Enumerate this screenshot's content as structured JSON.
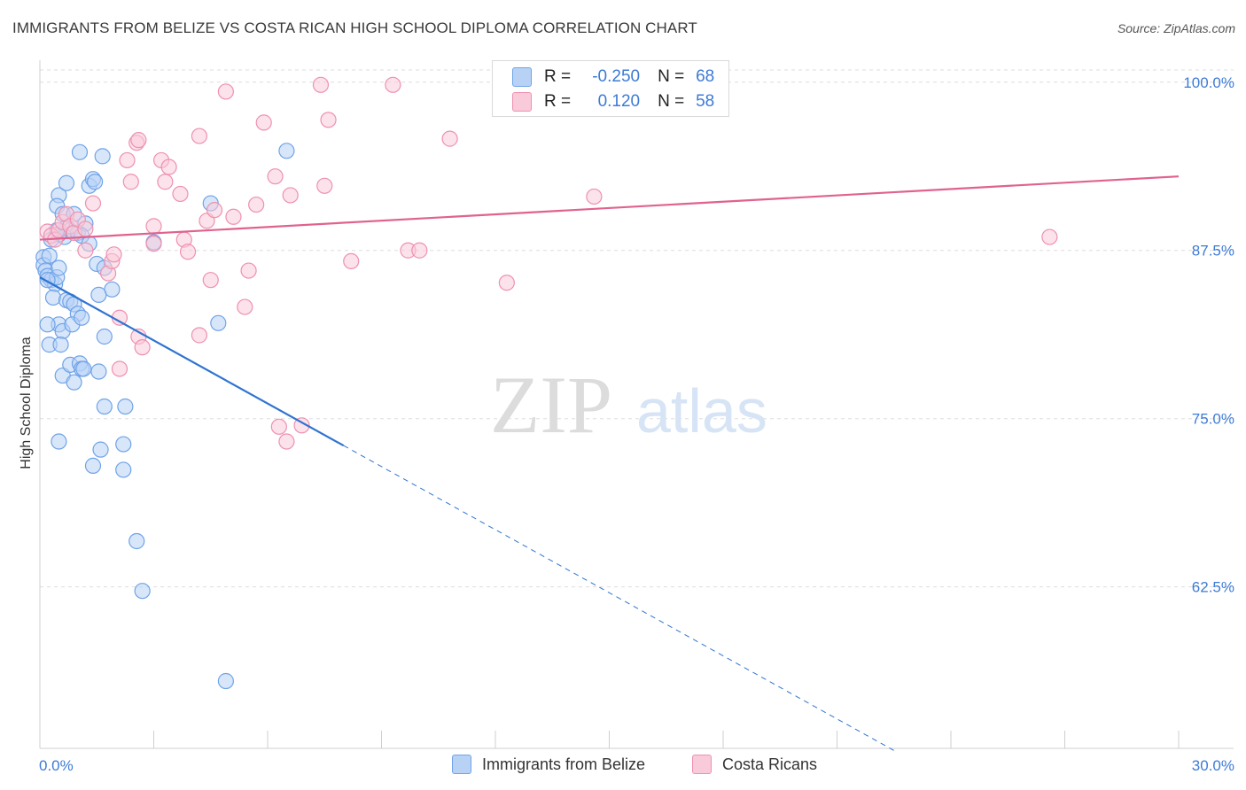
{
  "title": "IMMIGRANTS FROM BELIZE VS COSTA RICAN HIGH SCHOOL DIPLOMA CORRELATION CHART",
  "source": "Source: ZipAtlas.com",
  "watermark": {
    "zip": "ZIP",
    "atlas": "atlas"
  },
  "legend": {
    "r_label": "R =",
    "n_label": "N =",
    "rows": [
      {
        "r": "-0.250",
        "n": "68",
        "color": "#6fa3e8",
        "fill": "#b8d2f5"
      },
      {
        "r": "0.120",
        "n": "58",
        "color": "#ee91b0",
        "fill": "#f9cad9"
      }
    ]
  },
  "chart_data": {
    "type": "scatter",
    "title": "IMMIGRANTS FROM BELIZE VS COSTA RICAN HIGH SCHOOL DIPLOMA CORRELATION CHART",
    "xlabel": "",
    "ylabel": "High School Diploma",
    "xlim": [
      0.0,
      30.0
    ],
    "ylim": [
      50.5,
      101.5
    ],
    "x_tick_labels": [
      "0.0%",
      "30.0%"
    ],
    "y_ticks": [
      62.5,
      75.0,
      87.5,
      100.0
    ],
    "y_tick_labels": [
      "62.5%",
      "75.0%",
      "87.5%",
      "100.0%"
    ],
    "grid": true,
    "legend_position": "top-center",
    "series": [
      {
        "name": "Immigrants from Belize",
        "color": "#6fa3e8",
        "fill": "#b8d2f5",
        "trend": {
          "x0": 0.0,
          "y0": 85.5,
          "x1": 8.0,
          "y1": 73.0,
          "dash_to_x": 22.5
        },
        "points": [
          [
            0.1,
            87.0
          ],
          [
            0.1,
            86.4
          ],
          [
            0.15,
            86.0
          ],
          [
            0.2,
            85.6
          ],
          [
            0.3,
            85.3
          ],
          [
            0.25,
            87.1
          ],
          [
            0.4,
            85.0
          ],
          [
            0.45,
            85.5
          ],
          [
            0.5,
            86.2
          ],
          [
            0.2,
            85.3
          ],
          [
            0.35,
            84.0
          ],
          [
            0.5,
            82.0
          ],
          [
            0.2,
            82.0
          ],
          [
            0.6,
            81.5
          ],
          [
            0.25,
            80.5
          ],
          [
            0.55,
            80.5
          ],
          [
            0.7,
            83.8
          ],
          [
            0.8,
            83.7
          ],
          [
            0.9,
            83.5
          ],
          [
            1.0,
            82.8
          ],
          [
            0.85,
            82.0
          ],
          [
            1.1,
            82.5
          ],
          [
            0.5,
            91.6
          ],
          [
            0.45,
            90.8
          ],
          [
            0.6,
            90.2
          ],
          [
            0.7,
            89.2
          ],
          [
            0.8,
            89.0
          ],
          [
            0.65,
            88.5
          ],
          [
            0.5,
            88.7
          ],
          [
            0.45,
            89.0
          ],
          [
            0.7,
            92.5
          ],
          [
            0.9,
            90.2
          ],
          [
            1.0,
            88.8
          ],
          [
            1.2,
            89.5
          ],
          [
            1.1,
            88.6
          ],
          [
            1.3,
            88.0
          ],
          [
            1.05,
            94.8
          ],
          [
            1.65,
            94.5
          ],
          [
            1.3,
            92.3
          ],
          [
            1.4,
            92.8
          ],
          [
            1.45,
            92.6
          ],
          [
            1.9,
            84.6
          ],
          [
            1.55,
            84.2
          ],
          [
            1.5,
            86.5
          ],
          [
            1.7,
            86.2
          ],
          [
            0.6,
            78.2
          ],
          [
            0.8,
            79.0
          ],
          [
            0.9,
            77.7
          ],
          [
            1.05,
            79.1
          ],
          [
            1.1,
            78.7
          ],
          [
            1.15,
            78.7
          ],
          [
            1.55,
            78.5
          ],
          [
            1.7,
            81.1
          ],
          [
            1.7,
            75.9
          ],
          [
            2.25,
            75.9
          ],
          [
            0.5,
            73.3
          ],
          [
            1.4,
            71.5
          ],
          [
            1.6,
            72.7
          ],
          [
            2.2,
            73.1
          ],
          [
            2.2,
            71.2
          ],
          [
            2.55,
            65.9
          ],
          [
            2.7,
            62.2
          ],
          [
            3.0,
            88.1
          ],
          [
            4.5,
            91.0
          ],
          [
            4.7,
            82.1
          ],
          [
            6.5,
            94.9
          ],
          [
            0.3,
            88.3
          ],
          [
            4.9,
            55.5
          ]
        ]
      },
      {
        "name": "Costa Ricans",
        "color": "#ee91b0",
        "fill": "#f9cad9",
        "trend": {
          "x0": 0.0,
          "y0": 88.3,
          "x1": 30.0,
          "y1": 93.0
        },
        "points": [
          [
            0.2,
            88.9
          ],
          [
            0.3,
            88.6
          ],
          [
            0.4,
            88.3
          ],
          [
            0.5,
            89.0
          ],
          [
            0.6,
            89.6
          ],
          [
            0.7,
            90.2
          ],
          [
            0.8,
            89.3
          ],
          [
            0.9,
            88.8
          ],
          [
            1.0,
            89.8
          ],
          [
            1.2,
            89.1
          ],
          [
            1.2,
            87.5
          ],
          [
            1.4,
            91.0
          ],
          [
            1.8,
            85.8
          ],
          [
            1.9,
            86.7
          ],
          [
            1.95,
            87.2
          ],
          [
            2.1,
            82.5
          ],
          [
            2.1,
            78.7
          ],
          [
            2.3,
            94.2
          ],
          [
            2.4,
            92.6
          ],
          [
            2.55,
            95.5
          ],
          [
            2.6,
            95.7
          ],
          [
            2.6,
            81.1
          ],
          [
            2.7,
            80.3
          ],
          [
            3.0,
            88.0
          ],
          [
            3.0,
            89.3
          ],
          [
            3.2,
            94.2
          ],
          [
            3.3,
            92.6
          ],
          [
            3.4,
            93.7
          ],
          [
            3.7,
            91.7
          ],
          [
            3.8,
            88.3
          ],
          [
            3.9,
            87.4
          ],
          [
            4.2,
            96.0
          ],
          [
            4.2,
            81.2
          ],
          [
            4.4,
            89.7
          ],
          [
            4.5,
            85.3
          ],
          [
            4.6,
            90.5
          ],
          [
            4.9,
            99.3
          ],
          [
            5.1,
            90.0
          ],
          [
            5.4,
            83.3
          ],
          [
            5.5,
            86.0
          ],
          [
            5.7,
            90.9
          ],
          [
            5.9,
            97.0
          ],
          [
            6.2,
            93.0
          ],
          [
            6.3,
            74.4
          ],
          [
            6.5,
            73.3
          ],
          [
            6.6,
            91.6
          ],
          [
            6.9,
            74.5
          ],
          [
            7.4,
            99.8
          ],
          [
            7.5,
            92.3
          ],
          [
            7.6,
            97.2
          ],
          [
            8.2,
            86.7
          ],
          [
            9.3,
            99.8
          ],
          [
            9.7,
            87.5
          ],
          [
            10.0,
            87.5
          ],
          [
            10.8,
            95.8
          ],
          [
            12.3,
            85.1
          ],
          [
            14.6,
            91.5
          ],
          [
            26.6,
            88.5
          ]
        ]
      }
    ]
  },
  "bottom_legend": [
    "Immigrants from Belize",
    "Costa Ricans"
  ]
}
